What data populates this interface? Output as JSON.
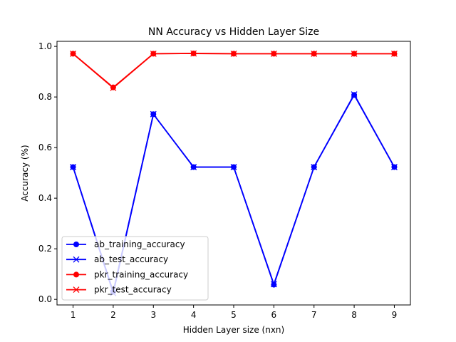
{
  "chart_data": {
    "type": "line",
    "title": "NN Accuracy vs Hidden Layer Size",
    "xlabel": "Hidden Layer size (nxn)",
    "ylabel": "Accuracy (%)",
    "x": [
      1,
      2,
      3,
      4,
      5,
      6,
      7,
      8,
      9
    ],
    "xlim": [
      0.6,
      9.4
    ],
    "ylim": [
      -0.022,
      1.02
    ],
    "xticks": [
      "1",
      "2",
      "3",
      "4",
      "5",
      "6",
      "7",
      "8",
      "9"
    ],
    "yticks": [
      "0.0",
      "0.2",
      "0.4",
      "0.6",
      "0.8",
      "1.0"
    ],
    "grid": false,
    "legend_position": "lower-left",
    "series": [
      {
        "name": "ab_training_accuracy",
        "color": "#0000ff",
        "marker": "circle",
        "values": [
          0.523,
          0.03,
          0.732,
          0.523,
          0.523,
          0.058,
          0.523,
          0.808,
          0.523
        ]
      },
      {
        "name": "ab_test_accuracy",
        "color": "#0000ff",
        "marker": "x",
        "values": [
          0.523,
          0.025,
          0.732,
          0.523,
          0.523,
          0.06,
          0.523,
          0.81,
          0.523
        ]
      },
      {
        "name": "pkr_training_accuracy",
        "color": "#ff0000",
        "marker": "circle",
        "values": [
          0.971,
          0.838,
          0.971,
          0.972,
          0.971,
          0.971,
          0.971,
          0.971,
          0.971
        ]
      },
      {
        "name": "pkr_test_accuracy",
        "color": "#ff0000",
        "marker": "x",
        "values": [
          0.971,
          0.836,
          0.971,
          0.972,
          0.971,
          0.971,
          0.971,
          0.971,
          0.971
        ]
      }
    ]
  }
}
